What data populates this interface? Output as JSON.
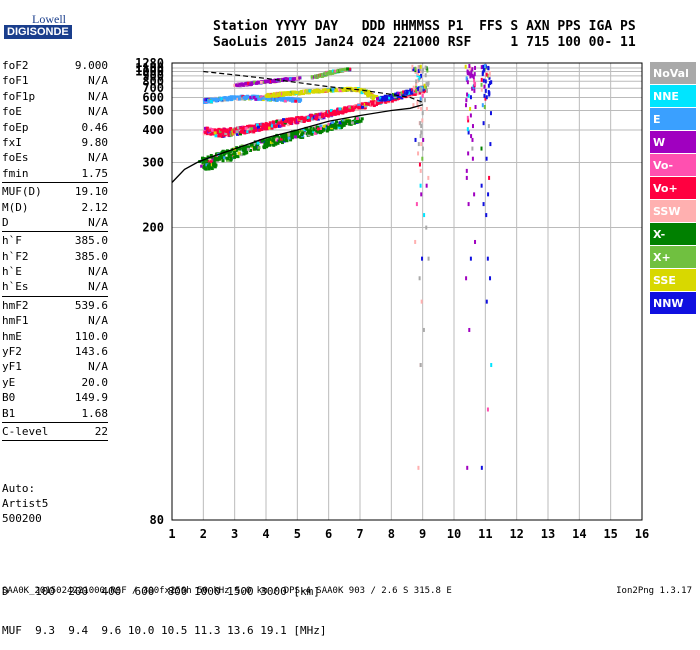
{
  "logo": {
    "top": "Lowell",
    "bottom": "DIGISONDE"
  },
  "header": {
    "line1": "Station YYYY DAY   DDD HHMMSS P1  FFS S AXN PPS IGA PS",
    "line2": "SaoLuis 2015 Jan24 024 221000 RSF     1 715 100 00- 11"
  },
  "params": [
    {
      "name": "foF2",
      "value": "9.000"
    },
    {
      "name": "foF1",
      "value": "N/A"
    },
    {
      "name": "foF1p",
      "value": "N/A"
    },
    {
      "name": "foE",
      "value": "N/A"
    },
    {
      "name": "foEp",
      "value": "0.46"
    },
    {
      "name": "fxI",
      "value": "9.80"
    },
    {
      "name": "foEs",
      "value": "N/A"
    },
    {
      "name": "fmin",
      "value": "1.75",
      "sep": true
    },
    {
      "name": "MUF(D)",
      "value": "19.10"
    },
    {
      "name": "M(D)",
      "value": "2.12"
    },
    {
      "name": "D",
      "value": "N/A",
      "sep": true
    },
    {
      "name": "h`F",
      "value": "385.0"
    },
    {
      "name": "h`F2",
      "value": "385.0"
    },
    {
      "name": "h`E",
      "value": "N/A"
    },
    {
      "name": "h`Es",
      "value": "N/A",
      "sep": true
    },
    {
      "name": "hmF2",
      "value": "539.6"
    },
    {
      "name": "hmF1",
      "value": "N/A"
    },
    {
      "name": "hmE",
      "value": "110.0"
    },
    {
      "name": "yF2",
      "value": "143.6"
    },
    {
      "name": "yF1",
      "value": "N/A"
    },
    {
      "name": "yE",
      "value": "20.0"
    },
    {
      "name": "B0",
      "value": "149.9"
    },
    {
      "name": "B1",
      "value": "1.68",
      "sep": true
    },
    {
      "name": "C-level",
      "value": "22",
      "sep": true
    }
  ],
  "auto": {
    "line1": "Auto:",
    "line2": "Artist5",
    "line3": "500200"
  },
  "legend": [
    {
      "label": "NoVal",
      "color": "#a9a9a9"
    },
    {
      "label": "NNE",
      "color": "#00e5ff"
    },
    {
      "label": "E",
      "color": "#3aa0ff"
    },
    {
      "label": "W",
      "color": "#a000c0"
    },
    {
      "label": "Vo-",
      "color": "#ff50b0"
    },
    {
      "label": "Vo+",
      "color": "#ff0040"
    },
    {
      "label": "SSW",
      "color": "#ffb0b0"
    },
    {
      "label": "X-",
      "color": "#008000"
    },
    {
      "label": "X+",
      "color": "#70c040"
    },
    {
      "label": "SSE",
      "color": "#d8d800"
    },
    {
      "label": "NNW",
      "color": "#1010e0"
    }
  ],
  "bottom": {
    "line1": "D    100  200  400  600  800 1000 1500 3000 [km]",
    "line2": "MUF  9.3  9.4  9.6 10.0 10.5 11.3 13.6 19.1 [MHz]"
  },
  "footer": {
    "left": "SAA0K_2015024221000.RSF / 300fx256h 50 kHz 5.0 km / DPS-4 SAA0K 903 / 2.6 S 315.8 E",
    "right": "Ion2Png 1.3.17"
  },
  "chart_data": {
    "type": "scatter",
    "xlim": [
      1,
      16
    ],
    "ylim": [
      80,
      1280
    ],
    "y_scale": "reciprocal",
    "x_ticks": [
      1,
      2,
      3,
      4,
      5,
      6,
      7,
      8,
      9,
      10,
      11,
      12,
      13,
      14,
      15,
      16
    ],
    "y_ticks": [
      80,
      200,
      300,
      400,
      500,
      600,
      700,
      800,
      900,
      1000,
      1100,
      1280
    ],
    "grid": true,
    "legend_position": "right",
    "profile_curve": [
      [
        1,
        260
      ],
      [
        1.4,
        285
      ],
      [
        1.8,
        300
      ],
      [
        2.2,
        312
      ],
      [
        3,
        335
      ],
      [
        4,
        370
      ],
      [
        5,
        400
      ],
      [
        6,
        440
      ],
      [
        7,
        470
      ],
      [
        8,
        500
      ],
      [
        8.6,
        515
      ],
      [
        9,
        540
      ]
    ],
    "dashed_curve": [
      [
        2,
        1000
      ],
      [
        3,
        920
      ],
      [
        4,
        850
      ],
      [
        5,
        780
      ],
      [
        6,
        720
      ],
      [
        7,
        680
      ],
      [
        8,
        630
      ],
      [
        8.6,
        600
      ],
      [
        9,
        560
      ]
    ],
    "traces": [
      {
        "name": "X-",
        "x": [
          1.9,
          2.2,
          2.5,
          3,
          3.5,
          4,
          4.5,
          5,
          5.5,
          6,
          6.5,
          7
        ],
        "y": [
          300,
          305,
          315,
          330,
          345,
          360,
          375,
          390,
          405,
          420,
          440,
          455
        ]
      },
      {
        "name": "Vo+",
        "x": [
          2,
          2.4,
          2.8,
          3.2,
          3.6,
          4,
          4.5,
          5,
          5.5,
          6,
          6.5,
          7,
          7.5,
          8,
          8.5,
          9
        ],
        "y": [
          400,
          395,
          398,
          405,
          415,
          425,
          440,
          455,
          470,
          490,
          515,
          540,
          570,
          600,
          640,
          690
        ]
      },
      {
        "name": "NNW",
        "x": [
          7.6,
          7.8,
          8,
          8.2,
          8.4,
          8.6,
          8.8,
          9
        ],
        "y": [
          600,
          610,
          625,
          640,
          660,
          680,
          700,
          730
        ]
      },
      {
        "name": "E",
        "x": [
          2,
          2.5,
          3,
          3.5,
          4,
          4.5,
          5
        ],
        "y": [
          580,
          600,
          610,
          615,
          605,
          595,
          590
        ]
      },
      {
        "name": "SSE",
        "x": [
          4,
          4.5,
          5,
          5.5,
          6,
          6.5,
          7,
          7.5
        ],
        "y": [
          630,
          650,
          665,
          680,
          695,
          705,
          700,
          600
        ]
      },
      {
        "name": "W",
        "x": [
          3,
          3.5,
          4,
          4.5,
          5
        ],
        "y": [
          760,
          790,
          820,
          850,
          880
        ]
      },
      {
        "name": "X+",
        "x": [
          5.5,
          5.8,
          6,
          6.3,
          6.6
        ],
        "y": [
          900,
          960,
          1010,
          1060,
          1110
        ]
      }
    ],
    "vertical_bands": [
      {
        "name": "SSW",
        "x": 8.8
      },
      {
        "name": "NoVal",
        "x": 9
      },
      {
        "name": "W",
        "x": 10.5
      },
      {
        "name": "NNW",
        "x": 11
      }
    ]
  }
}
